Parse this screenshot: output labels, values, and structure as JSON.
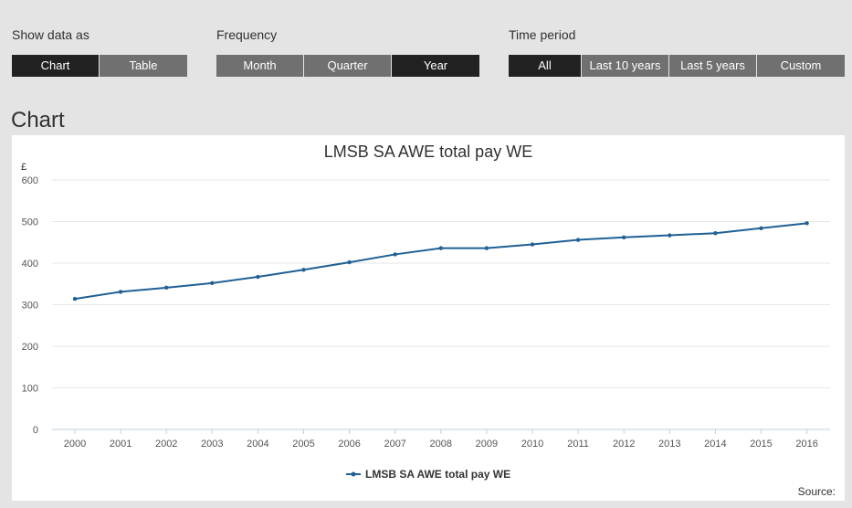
{
  "controls": {
    "show_data_as": {
      "label": "Show data as",
      "options": [
        {
          "label": "Chart",
          "active": true
        },
        {
          "label": "Table",
          "active": false
        }
      ]
    },
    "frequency": {
      "label": "Frequency",
      "options": [
        {
          "label": "Month",
          "active": false
        },
        {
          "label": "Quarter",
          "active": false
        },
        {
          "label": "Year",
          "active": true
        }
      ]
    },
    "time_period": {
      "label": "Time period",
      "options": [
        {
          "label": "All",
          "active": true
        },
        {
          "label": "Last 10 years",
          "active": false
        },
        {
          "label": "Last 5 years",
          "active": false
        },
        {
          "label": "Custom",
          "active": false
        }
      ]
    }
  },
  "section_title": "Chart",
  "source_label": "Source:",
  "colors": {
    "series": "#206095",
    "active_button": "#222222",
    "inactive_button": "#707071",
    "background": "#e4e4e4"
  },
  "chart_data": {
    "type": "line",
    "title": "LMSB SA AWE total pay WE",
    "ylabel": "£",
    "xlabel": "",
    "ylim": [
      0,
      600
    ],
    "yticks": [
      0,
      100,
      200,
      300,
      400,
      500,
      600
    ],
    "categories": [
      "2000",
      "2001",
      "2002",
      "2003",
      "2004",
      "2005",
      "2006",
      "2007",
      "2008",
      "2009",
      "2010",
      "2011",
      "2012",
      "2013",
      "2014",
      "2015",
      "2016"
    ],
    "series": [
      {
        "name": "LMSB SA AWE total pay WE",
        "values": [
          314,
          331,
          341,
          352,
          367,
          384,
          402,
          421,
          436,
          436,
          445,
          456,
          462,
          467,
          472,
          484,
          496
        ]
      }
    ],
    "grid": true,
    "legend": "bottom-center"
  }
}
